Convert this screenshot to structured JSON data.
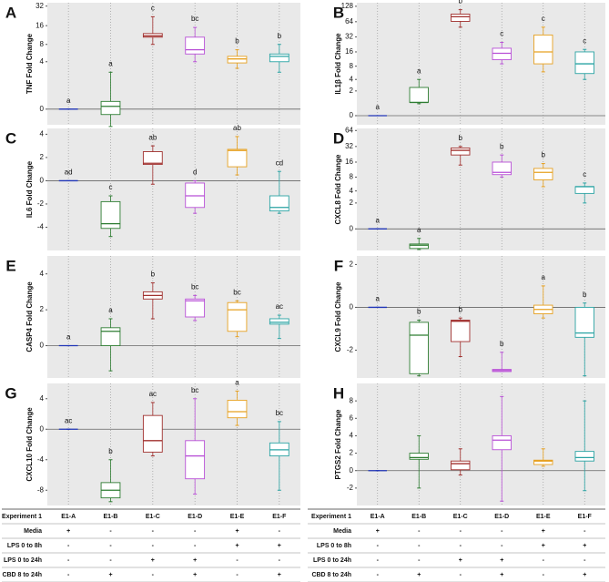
{
  "chart_data": [
    {
      "type": "box",
      "panel": "A",
      "ylabel": "TNF Fold Change",
      "yscale": "symlog2",
      "ylim": [
        -0.7,
        36
      ],
      "yticks": [
        0,
        4,
        8,
        16,
        32
      ],
      "boxes": [
        {
          "min": 0,
          "q1": 0,
          "median": 0,
          "q3": 0,
          "max": 0,
          "color": "#2136b8",
          "letter": "a"
        },
        {
          "min": -0.8,
          "q1": -0.2,
          "median": 0.1,
          "q3": 0.3,
          "max": 2.5,
          "color": "#2e7d32",
          "letter": "a"
        },
        {
          "min": 8,
          "q1": 10.5,
          "median": 11,
          "q3": 12,
          "max": 22,
          "color": "#a0302e",
          "letter": "c"
        },
        {
          "min": 4,
          "q1": 5.5,
          "median": 6.5,
          "q3": 10.5,
          "max": 15,
          "color": "#b84fd6",
          "letter": "bc"
        },
        {
          "min": 3,
          "q1": 3.8,
          "median": 4.5,
          "q3": 5,
          "max": 6.5,
          "color": "#e6a020",
          "letter": "b"
        },
        {
          "min": 2.5,
          "q1": 4,
          "median": 5,
          "q3": 5.5,
          "max": 8,
          "color": "#2aa3a3",
          "letter": "b"
        }
      ]
    },
    {
      "type": "box",
      "panel": "B",
      "ylabel": "IL1β Fold Change",
      "yscale": "symlog2",
      "ylim": [
        -0.5,
        150
      ],
      "yticks": [
        0,
        2,
        4,
        8,
        16,
        32,
        64,
        128
      ],
      "boxes": [
        {
          "min": 0,
          "q1": 0,
          "median": 0,
          "q3": 0,
          "max": 0,
          "color": "#2136b8",
          "letter": "a"
        },
        {
          "min": 0.7,
          "q1": 0.8,
          "median": 0.8,
          "q3": 2.5,
          "max": 4,
          "color": "#2e7d32",
          "letter": "a"
        },
        {
          "min": 50,
          "q1": 65,
          "median": 80,
          "q3": 90,
          "max": 110,
          "color": "#a0302e",
          "letter": "b"
        },
        {
          "min": 9,
          "q1": 11,
          "median": 15,
          "q3": 19,
          "max": 25,
          "color": "#b84fd6",
          "letter": "c"
        },
        {
          "min": 6,
          "q1": 9,
          "median": 16,
          "q3": 35,
          "max": 50,
          "color": "#e6a020",
          "letter": "c"
        },
        {
          "min": 4,
          "q1": 5.5,
          "median": 9,
          "q3": 16,
          "max": 18,
          "color": "#2aa3a3",
          "letter": "c"
        }
      ]
    },
    {
      "type": "box",
      "panel": "C",
      "ylabel": "IL6 Fold Change",
      "yscale": "linear",
      "ylim": [
        -6,
        4.5
      ],
      "yticks": [
        -4,
        -2,
        0,
        2,
        4
      ],
      "boxes": [
        {
          "min": 0,
          "q1": 0,
          "median": 0,
          "q3": 0,
          "max": 0,
          "color": "#2136b8",
          "letter": "ad"
        },
        {
          "min": -4.8,
          "q1": -4.1,
          "median": -3.7,
          "q3": -1.8,
          "max": -1.3,
          "color": "#2e7d32",
          "letter": "c"
        },
        {
          "min": -0.3,
          "q1": 1.4,
          "median": 1.5,
          "q3": 2.5,
          "max": 3,
          "color": "#a0302e",
          "letter": "ab"
        },
        {
          "min": -2.8,
          "q1": -2.3,
          "median": -1.3,
          "q3": -0.2,
          "max": 0,
          "color": "#b84fd6",
          "letter": "d"
        },
        {
          "min": 0.5,
          "q1": 1.2,
          "median": 2.6,
          "q3": 2.7,
          "max": 3.8,
          "color": "#e6a020",
          "letter": "ab"
        },
        {
          "min": -2.8,
          "q1": -2.6,
          "median": -2.3,
          "q3": -1.3,
          "max": 0.8,
          "color": "#2aa3a3",
          "letter": "cd"
        }
      ]
    },
    {
      "type": "box",
      "panel": "D",
      "ylabel": "CXCL8 Fold Change",
      "yscale": "symlog2",
      "ylim": [
        -1.5,
        70
      ],
      "yticks": [
        0,
        2,
        4,
        8,
        16,
        32,
        64
      ],
      "boxes": [
        {
          "min": 0,
          "q1": 0,
          "median": 0,
          "q3": 0,
          "max": 0,
          "color": "#2136b8",
          "letter": "a"
        },
        {
          "min": -1.4,
          "q1": -1.3,
          "median": -1,
          "q3": -0.9,
          "max": -0.5,
          "color": "#2e7d32",
          "letter": "a"
        },
        {
          "min": 14,
          "q1": 22,
          "median": 27,
          "q3": 30,
          "max": 32,
          "color": "#a0302e",
          "letter": "b"
        },
        {
          "min": 8,
          "q1": 9,
          "median": 10,
          "q3": 16,
          "max": 22,
          "color": "#b84fd6",
          "letter": "b"
        },
        {
          "min": 5,
          "q1": 7,
          "median": 10,
          "q3": 12,
          "max": 15,
          "color": "#e6a020",
          "letter": "b"
        },
        {
          "min": 2,
          "q1": 3.5,
          "median": 5,
          "q3": 5,
          "max": 6,
          "color": "#2aa3a3",
          "letter": "c"
        }
      ]
    },
    {
      "type": "box",
      "panel": "E",
      "ylabel": "CASP4 Fold Change",
      "yscale": "linear",
      "ylim": [
        -1.8,
        5
      ],
      "yticks": [
        0,
        2,
        4
      ],
      "boxes": [
        {
          "min": 0,
          "q1": 0,
          "median": 0,
          "q3": 0,
          "max": 0,
          "color": "#2136b8",
          "letter": "a"
        },
        {
          "min": -1.4,
          "q1": 0,
          "median": 0.8,
          "q3": 1,
          "max": 1.5,
          "color": "#2e7d32",
          "letter": "a"
        },
        {
          "min": 1.5,
          "q1": 2.6,
          "median": 2.8,
          "q3": 3,
          "max": 3.5,
          "color": "#a0302e",
          "letter": "b"
        },
        {
          "min": 1.4,
          "q1": 1.6,
          "median": 2.5,
          "q3": 2.6,
          "max": 2.8,
          "color": "#b84fd6",
          "letter": "bc"
        },
        {
          "min": 0.5,
          "q1": 0.8,
          "median": 2,
          "q3": 2.4,
          "max": 2.5,
          "color": "#e6a020",
          "letter": "bc"
        },
        {
          "min": 0.4,
          "q1": 1.2,
          "median": 1.3,
          "q3": 1.5,
          "max": 1.7,
          "color": "#2aa3a3",
          "letter": "ac"
        }
      ]
    },
    {
      "type": "box",
      "panel": "F",
      "ylabel": "CXCL9 Fold Change",
      "yscale": "linear",
      "ylim": [
        -3.3,
        2.4
      ],
      "yticks": [
        -2,
        0,
        2
      ],
      "boxes": [
        {
          "min": 0,
          "q1": 0,
          "median": 0,
          "q3": 0,
          "max": 0,
          "color": "#2136b8",
          "letter": "a"
        },
        {
          "min": -3.2,
          "q1": -3.1,
          "median": -1.3,
          "q3": -0.7,
          "max": -0.6,
          "color": "#2e7d32",
          "letter": "b"
        },
        {
          "min": -2.3,
          "q1": -1.6,
          "median": -0.65,
          "q3": -0.6,
          "max": -0.5,
          "color": "#a0302e",
          "letter": "b"
        },
        {
          "min": -3,
          "q1": -3,
          "median": -2.95,
          "q3": -2.9,
          "max": -2.1,
          "color": "#b84fd6",
          "letter": "b"
        },
        {
          "min": -0.5,
          "q1": -0.3,
          "median": -0.1,
          "q3": 0.1,
          "max": 1,
          "color": "#e6a020",
          "letter": "a"
        },
        {
          "min": -3.2,
          "q1": -1.4,
          "median": -1.2,
          "q3": 0,
          "max": 0.2,
          "color": "#2aa3a3",
          "letter": "b"
        }
      ]
    },
    {
      "type": "box",
      "panel": "G",
      "ylabel": "CXCL10 Fold Change",
      "yscale": "linear",
      "ylim": [
        -10,
        6
      ],
      "yticks": [
        -8,
        -4,
        0,
        4
      ],
      "boxes": [
        {
          "min": 0,
          "q1": 0,
          "median": 0,
          "q3": 0,
          "max": 0,
          "color": "#2136b8",
          "letter": "ac"
        },
        {
          "min": -9.5,
          "q1": -9,
          "median": -8,
          "q3": -7,
          "max": -4,
          "color": "#2e7d32",
          "letter": "b"
        },
        {
          "min": -3.5,
          "q1": -3,
          "median": -1.5,
          "q3": 1.8,
          "max": 3.5,
          "color": "#a0302e",
          "letter": "ac"
        },
        {
          "min": -8.5,
          "q1": -6.5,
          "median": -3.5,
          "q3": -1.5,
          "max": 4,
          "color": "#b84fd6",
          "letter": "bc"
        },
        {
          "min": 0.5,
          "q1": 1.5,
          "median": 2.3,
          "q3": 3.8,
          "max": 5,
          "color": "#e6a020",
          "letter": "a"
        },
        {
          "min": -8,
          "q1": -3.5,
          "median": -2.7,
          "q3": -1.8,
          "max": 1,
          "color": "#2aa3a3",
          "letter": "bc"
        }
      ]
    },
    {
      "type": "box",
      "panel": "H",
      "ylabel": "PTGS2 Fold Change",
      "yscale": "linear",
      "ylim": [
        -4,
        10
      ],
      "yticks": [
        -2,
        0,
        2,
        4,
        6,
        8
      ],
      "boxes": [
        {
          "min": 0,
          "q1": 0,
          "median": 0,
          "q3": 0,
          "max": 0,
          "color": "#2136b8"
        },
        {
          "min": -2,
          "q1": 1.3,
          "median": 1.5,
          "q3": 2,
          "max": 4,
          "color": "#2e7d32"
        },
        {
          "min": -0.5,
          "q1": 0.1,
          "median": 0.8,
          "q3": 1.1,
          "max": 2.5,
          "color": "#a0302e"
        },
        {
          "min": -3.5,
          "q1": 2.4,
          "median": 3.5,
          "q3": 4,
          "max": 8.5,
          "color": "#b84fd6"
        },
        {
          "min": 0.5,
          "q1": 0.7,
          "median": 1.1,
          "q3": 1.2,
          "max": 2.5,
          "color": "#e6a020"
        },
        {
          "min": -2.3,
          "q1": 1.1,
          "median": 1.5,
          "q3": 2.2,
          "max": 8,
          "color": "#2aa3a3"
        }
      ]
    }
  ],
  "condition_tables": [
    {
      "rows": [
        [
          "Experiment 1",
          "E1-A",
          "E1-B",
          "E1-C",
          "E1-D",
          "E1-E",
          "E1-F"
        ],
        [
          "Media",
          "+",
          "-",
          "-",
          "-",
          "+",
          "-"
        ],
        [
          "LPS 0 to 8h",
          "-",
          "-",
          "-",
          "-",
          "+",
          "+"
        ],
        [
          "LPS 0 to 24h",
          "-",
          "-",
          "+",
          "+",
          "-",
          "-"
        ],
        [
          "CBD 8 to 24h",
          "-",
          "+",
          "-",
          "+",
          "-",
          "+"
        ]
      ]
    },
    {
      "rows": [
        [
          "Experiment 1",
          "E1-A",
          "E1-B",
          "E1-C",
          "E1-D",
          "E1-E",
          "E1-F"
        ],
        [
          "Media",
          "+",
          "-",
          "-",
          "-",
          "+",
          "-"
        ],
        [
          "LPS 0 to 8h",
          "-",
          "-",
          "-",
          "-",
          "+",
          "+"
        ],
        [
          "LPS 0 to 24h",
          "-",
          "-",
          "+",
          "+",
          "-",
          "-"
        ],
        [
          "CBD 8 to 24h",
          "-",
          "+",
          "-",
          "+",
          "-",
          "+"
        ]
      ]
    }
  ]
}
